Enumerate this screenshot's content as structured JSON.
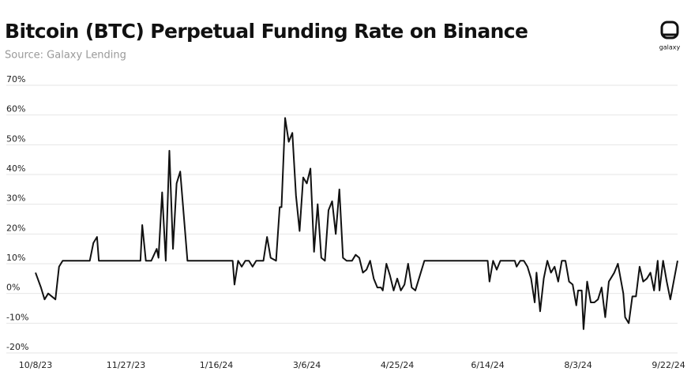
{
  "chart_data": {
    "type": "line",
    "title": "Bitcoin (BTC) Perpetual Funding Rate on Binance",
    "subtitle": "Source: Galaxy Lending",
    "logo": "galaxy",
    "x": [
      "10/8/23",
      "10/11/23",
      "10/13/23",
      "10/15/23",
      "10/17/23",
      "10/19/23",
      "10/21/23",
      "10/23/23",
      "11/7/23",
      "11/9/23",
      "11/11/23",
      "11/12/23",
      "12/5/23",
      "12/6/23",
      "12/8/23",
      "12/11/23",
      "12/14/23",
      "12/15/23",
      "12/17/23",
      "12/19/23",
      "12/21/23",
      "12/23/23",
      "12/25/23",
      "12/27/23",
      "12/31/23",
      "1/25/24",
      "1/26/24",
      "1/28/24",
      "1/30/24",
      "2/1/24",
      "2/3/24",
      "2/5/24",
      "2/7/24",
      "2/11/24",
      "2/13/24",
      "2/15/24",
      "2/18/24",
      "2/20/24",
      "2/21/24",
      "2/23/24",
      "2/25/24",
      "2/27/24",
      "2/29/24",
      "3/2/24",
      "3/4/24",
      "3/6/24",
      "3/8/24",
      "3/10/24",
      "3/12/24",
      "3/14/24",
      "3/16/24",
      "3/18/24",
      "3/20/24",
      "3/22/24",
      "3/24/24",
      "3/26/24",
      "3/28/24",
      "3/31/24",
      "4/2/24",
      "4/4/24",
      "4/6/24",
      "4/8/24",
      "4/10/24",
      "4/12/24",
      "4/14/24",
      "4/16/24",
      "4/17/24",
      "4/19/24",
      "4/21/24",
      "4/23/24",
      "4/25/24",
      "4/27/24",
      "4/29/24",
      "5/1/24",
      "5/3/24",
      "5/5/24",
      "5/8/24",
      "5/10/24",
      "6/14/24",
      "6/15/24",
      "6/17/24",
      "6/19/24",
      "6/21/24",
      "6/29/24",
      "6/30/24",
      "7/2/24",
      "7/4/24",
      "7/6/24",
      "7/8/24",
      "7/10/24",
      "7/11/24",
      "7/13/24",
      "7/15/24",
      "7/17/24",
      "7/19/24",
      "7/21/24",
      "7/23/24",
      "7/25/24",
      "7/27/24",
      "7/29/24",
      "7/31/24",
      "8/2/24",
      "8/3/24",
      "8/5/24",
      "8/6/24",
      "8/8/24",
      "8/10/24",
      "8/12/24",
      "8/14/24",
      "8/16/24",
      "8/18/24",
      "8/20/24",
      "8/23/24",
      "8/25/24",
      "8/28/24",
      "8/29/24",
      "8/31/24",
      "9/2/24",
      "9/4/24",
      "9/6/24",
      "9/8/24",
      "9/10/24",
      "9/12/24",
      "9/14/24",
      "9/16/24",
      "9/17/24",
      "9/19/24",
      "9/21/24",
      "9/23/24",
      "9/27/24"
    ],
    "series": [
      {
        "color": "#111111",
        "values": [
          7,
          2,
          -2,
          0,
          -1,
          -2,
          9,
          11,
          11,
          17,
          19,
          11,
          11,
          23,
          11,
          11,
          15,
          12,
          34,
          11,
          48,
          15,
          37,
          41,
          11,
          11,
          3,
          11,
          9,
          11,
          11,
          9,
          11,
          11,
          19,
          12,
          11,
          29,
          29,
          59,
          51,
          54,
          33,
          21,
          39,
          37,
          42,
          14,
          30,
          12,
          11,
          28,
          31,
          20,
          35,
          12,
          11,
          11,
          13,
          12,
          7,
          8,
          11,
          5,
          2,
          2,
          1,
          10,
          6,
          1,
          5,
          1,
          3,
          10,
          2,
          1,
          7,
          11,
          11,
          4,
          11,
          8,
          11,
          11,
          9,
          11,
          11,
          9,
          5,
          -3,
          7,
          -6,
          5,
          11,
          7,
          9,
          4,
          11,
          11,
          4,
          3,
          -4,
          1,
          1,
          -12,
          4,
          -3,
          -3,
          -2,
          2,
          -8,
          4,
          7,
          10,
          0,
          -8,
          -10,
          -1,
          -1,
          9,
          4,
          5,
          7,
          1,
          11,
          1,
          11,
          4,
          -2,
          11
        ]
      }
    ],
    "xlim": [
      "10/8/23",
      "9/27/24"
    ],
    "xticks": [
      "10/8/23",
      "11/27/23",
      "1/16/24",
      "3/6/24",
      "4/25/24",
      "6/14/24",
      "8/3/24",
      "9/22/24"
    ],
    "ylim": [
      -20,
      70
    ],
    "yticks": [
      {
        "value": -20,
        "label": "-20%"
      },
      {
        "value": -10,
        "label": "-10%"
      },
      {
        "value": 0,
        "label": "0%"
      },
      {
        "value": 10,
        "label": "10%"
      },
      {
        "value": 20,
        "label": "20%"
      },
      {
        "value": 30,
        "label": "30%"
      },
      {
        "value": 40,
        "label": "40%"
      },
      {
        "value": 50,
        "label": "50%"
      },
      {
        "value": 60,
        "label": "60%"
      },
      {
        "value": 70,
        "label": "70%"
      }
    ],
    "grid": true
  }
}
